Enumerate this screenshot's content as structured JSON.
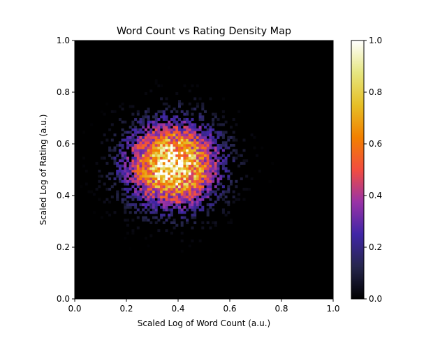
{
  "chart_data": {
    "type": "heatmap",
    "title": "Word Count vs Rating Density Map",
    "xlabel": "Scaled Log of Word Count (a.u.)",
    "ylabel": "Scaled Log of Rating (a.u.)",
    "xlim": [
      0.0,
      1.0
    ],
    "ylim": [
      0.0,
      1.0
    ],
    "xticks": [
      "0.0",
      "0.2",
      "0.4",
      "0.6",
      "0.8",
      "1.0"
    ],
    "yticks": [
      "0.0",
      "0.2",
      "0.4",
      "0.6",
      "0.8",
      "1.0"
    ],
    "colorbar": {
      "range": [
        0.0,
        1.0
      ],
      "ticks": [
        "0.0",
        "0.2",
        "0.4",
        "0.6",
        "0.8",
        "1.0"
      ],
      "colormap": "CMRmap"
    },
    "bins": [
      100,
      100
    ],
    "density_peak": {
      "x": 0.38,
      "y": 0.52,
      "value": 1.0
    },
    "density_spread": {
      "x": 0.12,
      "y": 0.11
    },
    "background_color": "#000000",
    "grid": false
  }
}
